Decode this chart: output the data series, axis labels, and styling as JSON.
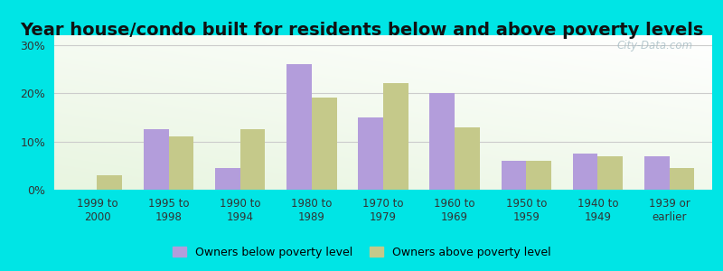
{
  "title": "Year house/condo built for residents below and above poverty levels",
  "categories": [
    "1999 to\n2000",
    "1995 to\n1998",
    "1990 to\n1994",
    "1980 to\n1989",
    "1970 to\n1979",
    "1960 to\n1969",
    "1950 to\n1959",
    "1940 to\n1949",
    "1939 or\nearlier"
  ],
  "below_poverty": [
    0.0,
    12.5,
    4.5,
    26.0,
    15.0,
    20.0,
    6.0,
    7.5,
    7.0
  ],
  "above_poverty": [
    3.0,
    11.0,
    12.5,
    19.0,
    22.0,
    13.0,
    6.0,
    7.0,
    4.5
  ],
  "below_color": "#b39ddb",
  "above_color": "#c5c98a",
  "ylim": [
    0,
    32
  ],
  "yticks": [
    0,
    10,
    20,
    30
  ],
  "ytick_labels": [
    "0%",
    "10%",
    "20%",
    "30%"
  ],
  "background_outer": "#00e5e5",
  "grid_color": "#cccccc",
  "title_fontsize": 14,
  "legend_below_label": "Owners below poverty level",
  "legend_above_label": "Owners above poverty level",
  "bar_width": 0.35,
  "watermark": "City-Data.com"
}
